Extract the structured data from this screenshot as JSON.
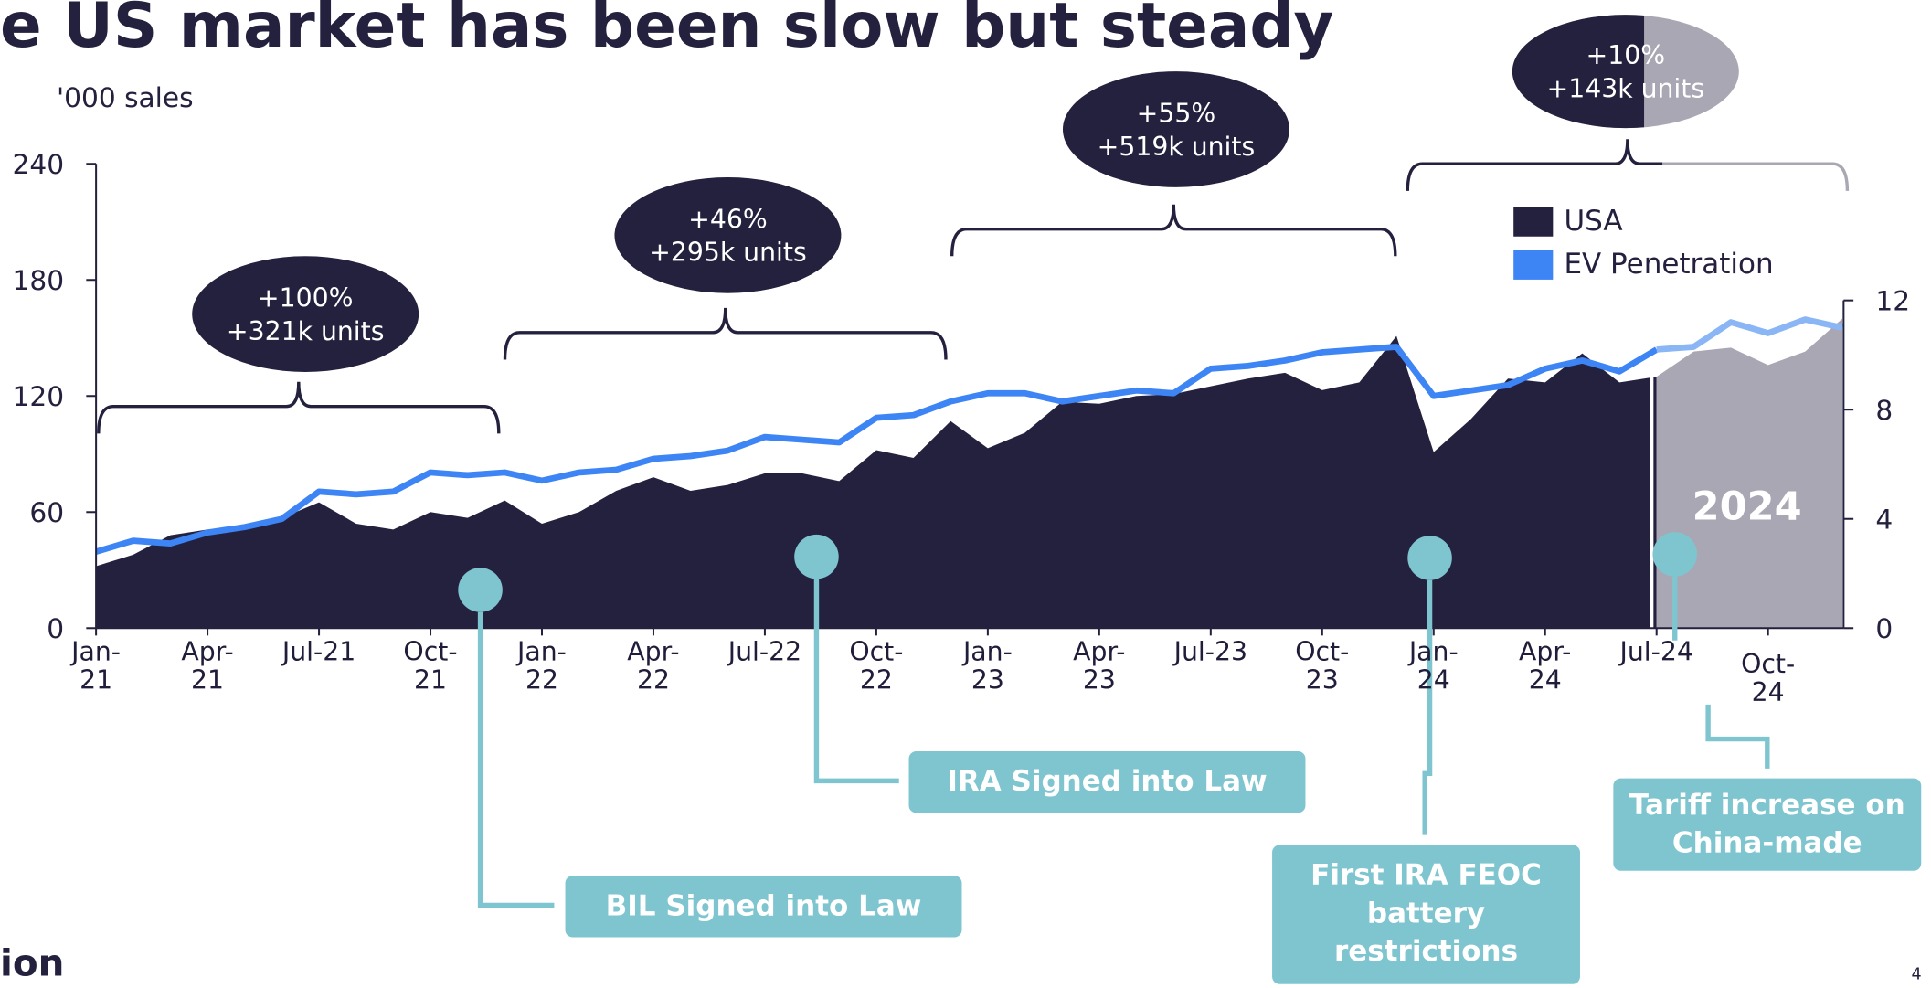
{
  "title": "e US market has been slow but steady",
  "logo": "ion",
  "page_number": "4",
  "chart_data": {
    "type": "area",
    "y_label": "'000 sales",
    "categories": [
      "Jan-21",
      null,
      null,
      "Apr-21",
      null,
      null,
      "Jul-21",
      null,
      null,
      "Oct-21",
      null,
      null,
      "Jan-22",
      null,
      null,
      "Apr-22",
      null,
      null,
      "Jul-22",
      null,
      null,
      "Oct-22",
      null,
      null,
      "Jan-23",
      null,
      null,
      "Apr-23",
      null,
      null,
      "Jul-23",
      null,
      null,
      "Oct-23",
      null,
      null,
      "Jan-24",
      null,
      null,
      "Apr-24",
      null,
      null,
      "Jul-24",
      null,
      null,
      "Oct-24",
      null,
      null
    ],
    "series": [
      {
        "name": "USA",
        "color": "#24213f",
        "values": [
          32,
          38,
          48,
          51,
          52,
          57,
          65,
          54,
          51,
          60,
          57,
          66,
          54,
          60,
          71,
          78,
          71,
          74,
          80,
          80,
          76,
          92,
          88,
          107,
          93,
          101,
          117,
          116,
          120,
          121,
          125,
          129,
          132,
          123,
          127,
          151,
          91,
          108,
          129,
          127,
          142,
          127,
          130,
          143,
          145,
          136,
          143,
          160
        ]
      },
      {
        "name": "EV Penetration",
        "color": "#3d84f5",
        "axis": "y2",
        "values": [
          2.8,
          3.2,
          3.1,
          3.5,
          3.7,
          4.0,
          5.0,
          4.9,
          5.0,
          5.7,
          5.6,
          5.7,
          5.4,
          5.7,
          5.8,
          6.2,
          6.3,
          6.5,
          7.0,
          6.9,
          6.8,
          7.7,
          7.8,
          8.3,
          8.6,
          8.6,
          8.3,
          8.5,
          8.7,
          8.6,
          9.5,
          9.6,
          9.8,
          10.1,
          10.2,
          10.3,
          8.5,
          8.7,
          8.9,
          9.5,
          9.8,
          9.4,
          10.2,
          10.3,
          11.2,
          10.8,
          11.3,
          11.0
        ]
      }
    ],
    "shade": {
      "label": "2024",
      "from": "Jul-24",
      "color": "#a9a7b3",
      "line_color": "#8ab6f5"
    },
    "ylim": [
      0,
      240
    ],
    "yticks": [
      0,
      60,
      120,
      180,
      240
    ],
    "y2lim": [
      0,
      17
    ],
    "y2ticks": [
      0,
      4,
      8,
      12
    ],
    "brackets": [
      {
        "text": [
          "+100%",
          "+321k units"
        ]
      },
      {
        "text": [
          "+46%",
          "+295k units"
        ]
      },
      {
        "text": [
          "+55%",
          "+519k units"
        ]
      },
      {
        "text": [
          "+10%",
          "+143k units"
        ]
      }
    ],
    "events": [
      {
        "text": "BIL Signed into Law"
      },
      {
        "text": "IRA Signed into Law"
      },
      {
        "text": "First IRA FEOC battery restrictions"
      },
      {
        "text": "Tariff increase on China-made"
      }
    ]
  }
}
